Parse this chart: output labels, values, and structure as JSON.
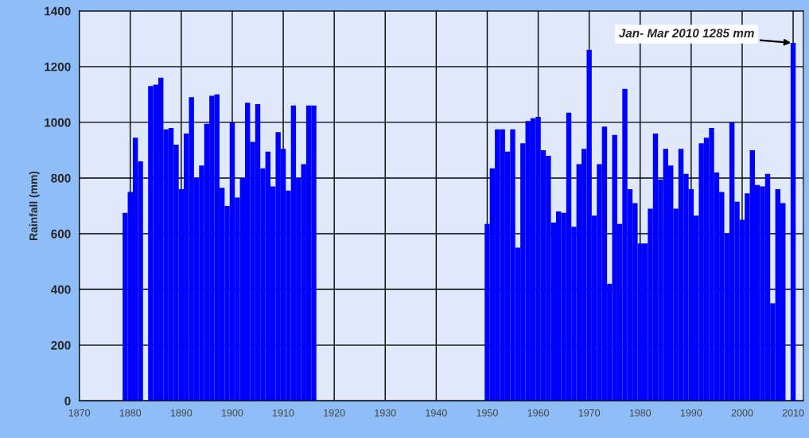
{
  "chart_data": {
    "type": "bar",
    "ylabel": "Rainfall (mm)",
    "x": [
      1879,
      1880,
      1881,
      1882,
      1884,
      1885,
      1886,
      1887,
      1888,
      1889,
      1890,
      1891,
      1892,
      1893,
      1894,
      1895,
      1896,
      1897,
      1898,
      1899,
      1900,
      1901,
      1902,
      1903,
      1904,
      1905,
      1906,
      1907,
      1908,
      1909,
      1910,
      1911,
      1912,
      1913,
      1914,
      1915,
      1916,
      1950,
      1951,
      1952,
      1953,
      1954,
      1955,
      1956,
      1957,
      1958,
      1959,
      1960,
      1961,
      1962,
      1963,
      1964,
      1965,
      1966,
      1967,
      1968,
      1969,
      1970,
      1971,
      1972,
      1973,
      1974,
      1975,
      1976,
      1977,
      1978,
      1979,
      1980,
      1981,
      1982,
      1983,
      1984,
      1985,
      1986,
      1987,
      1988,
      1989,
      1990,
      1991,
      1992,
      1993,
      1994,
      1995,
      1996,
      1997,
      1998,
      1999,
      2000,
      2001,
      2002,
      2003,
      2004,
      2005,
      2006,
      2007,
      2008,
      2010
    ],
    "values": [
      675,
      750,
      945,
      860,
      1130,
      1135,
      1160,
      975,
      980,
      920,
      760,
      960,
      1090,
      800,
      845,
      995,
      1095,
      1100,
      765,
      700,
      1000,
      730,
      800,
      1070,
      930,
      1065,
      835,
      895,
      770,
      965,
      905,
      755,
      1060,
      800,
      850,
      1060,
      1060,
      635,
      835,
      975,
      975,
      895,
      975,
      550,
      925,
      1005,
      1015,
      1020,
      900,
      880,
      640,
      680,
      675,
      1035,
      625,
      850,
      905,
      1260,
      665,
      850,
      985,
      420,
      955,
      635,
      1120,
      760,
      710,
      565,
      565,
      690,
      960,
      795,
      905,
      845,
      690,
      905,
      815,
      760,
      665,
      925,
      945,
      980,
      820,
      750,
      600,
      1000,
      715,
      650,
      745,
      900,
      775,
      770,
      815,
      350,
      760,
      710,
      1285
    ],
    "color": "#0000ff",
    "xlim": [
      1870,
      2012
    ],
    "xticks": [
      1870,
      1880,
      1890,
      1900,
      1910,
      1920,
      1930,
      1940,
      1950,
      1960,
      1970,
      1980,
      1990,
      2000,
      2010
    ],
    "ylim": [
      0,
      1400
    ],
    "yticks": [
      0,
      200,
      400,
      600,
      800,
      1000,
      1200,
      1400
    ],
    "grid": true,
    "annotations": [
      {
        "text": "Jan- Mar 2010 1285 mm",
        "x": 2010,
        "y": 1285
      }
    ]
  }
}
